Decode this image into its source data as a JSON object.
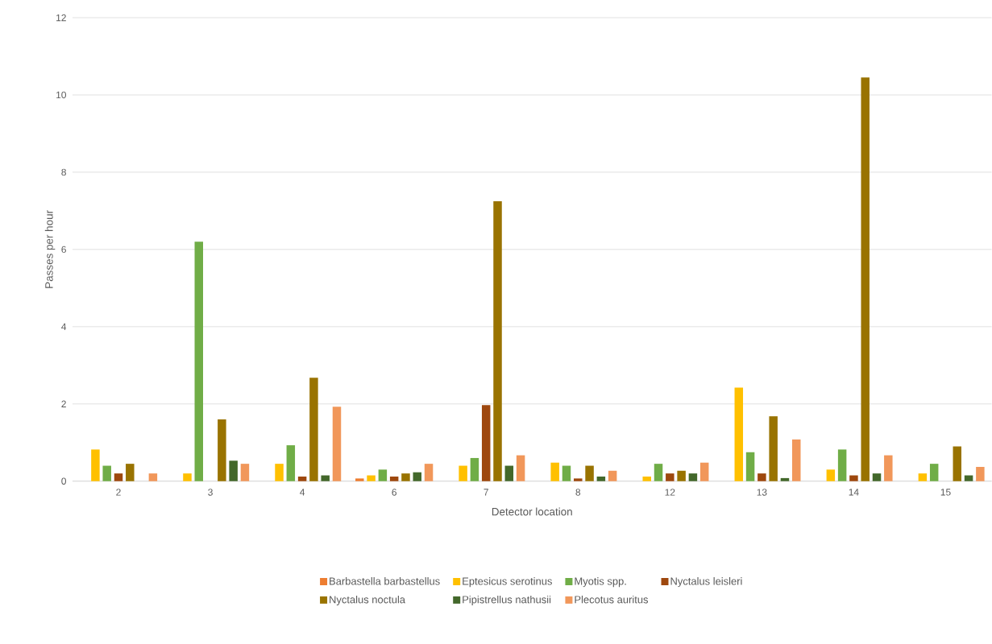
{
  "chart_data": {
    "type": "bar",
    "xlabel": "Detector location",
    "ylabel": "Passes per hour",
    "categories": [
      "2",
      "3",
      "4",
      "6",
      "7",
      "8",
      "12",
      "13",
      "14",
      "15"
    ],
    "series": [
      {
        "name": "Barbastella barbastellus",
        "color": "#ed7d31",
        "values": [
          0,
          0,
          0,
          0.07,
          0,
          0,
          0,
          0,
          0,
          0
        ]
      },
      {
        "name": "Eptesicus serotinus",
        "color": "#ffc000",
        "values": [
          0.82,
          0.2,
          0.45,
          0.15,
          0.4,
          0.48,
          0.12,
          2.42,
          0.3,
          0.2
        ]
      },
      {
        "name": "Myotis spp.",
        "color": "#70ad47",
        "values": [
          0.4,
          6.2,
          0.93,
          0.3,
          0.6,
          0.4,
          0.45,
          0.75,
          0.82,
          0.45
        ]
      },
      {
        "name": "Nyctalus leisleri",
        "color": "#9e480e",
        "values": [
          0.2,
          0,
          0.12,
          0.12,
          1.97,
          0.07,
          0.2,
          0.2,
          0.15,
          0
        ]
      },
      {
        "name": "Nyctalus noctula",
        "color": "#997300",
        "values": [
          0.45,
          1.6,
          2.68,
          0.2,
          7.25,
          0.4,
          0.27,
          1.68,
          10.45,
          0.9
        ]
      },
      {
        "name": "Pipistrellus nathusii",
        "color": "#43682b",
        "values": [
          0,
          0.53,
          0.15,
          0.23,
          0.4,
          0.12,
          0.2,
          0.08,
          0.2,
          0.15
        ]
      },
      {
        "name": "Plecotus auritus",
        "color": "#f1975a",
        "values": [
          0.2,
          0.45,
          1.93,
          0.45,
          0.67,
          0.27,
          0.48,
          1.08,
          0.67,
          0.37
        ]
      }
    ],
    "ylim": [
      0,
      12
    ],
    "yticks": [
      0,
      2,
      4,
      6,
      8,
      10,
      12
    ],
    "grid": "y",
    "legend": "bottom"
  }
}
